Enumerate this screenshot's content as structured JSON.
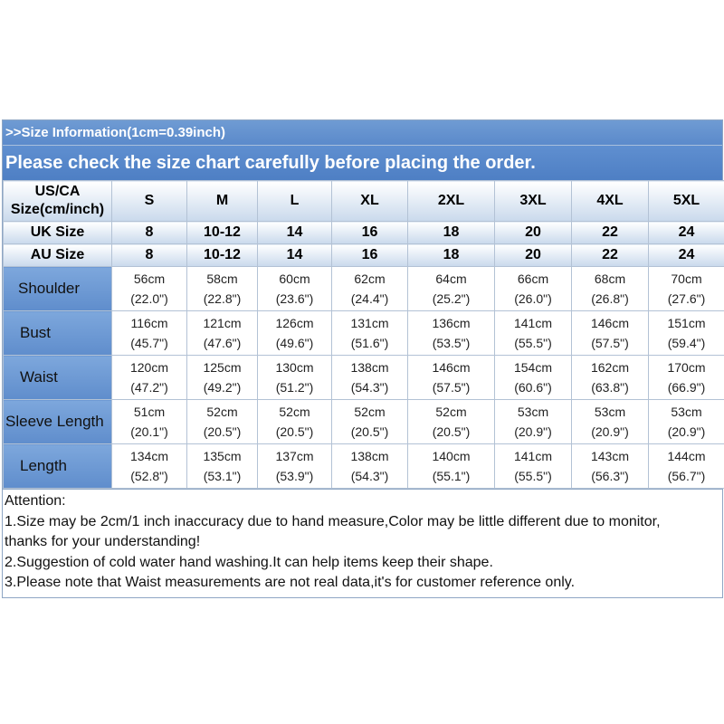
{
  "header": {
    "info": ">>Size Information(1cm=0.39inch)",
    "warning": "Please check the size chart carefully before placing the order."
  },
  "size_rows": [
    {
      "label_lines": [
        "US/CA",
        "Size(cm/inch)"
      ],
      "values": [
        "S",
        "M",
        "L",
        "XL",
        "2XL",
        "3XL",
        "4XL",
        "5XL"
      ]
    },
    {
      "label_lines": [
        "UK Size"
      ],
      "values": [
        "8",
        "10-12",
        "14",
        "16",
        "18",
        "20",
        "22",
        "24"
      ]
    },
    {
      "label_lines": [
        "AU Size"
      ],
      "values": [
        "8",
        "10-12",
        "14",
        "16",
        "18",
        "20",
        "22",
        "24"
      ]
    }
  ],
  "measurements": [
    {
      "label": "Shoulder",
      "cm": [
        "56cm",
        "58cm",
        "60cm",
        "62cm",
        "64cm",
        "66cm",
        "68cm",
        "70cm"
      ],
      "inch": [
        "(22.0\")",
        "(22.8\")",
        "(23.6\")",
        "(24.4\")",
        "(25.2\")",
        "(26.0\")",
        "(26.8\")",
        "(27.6\")"
      ]
    },
    {
      "label": "Bust",
      "cm": [
        "116cm",
        "121cm",
        "126cm",
        "131cm",
        "136cm",
        "141cm",
        "146cm",
        "151cm"
      ],
      "inch": [
        "(45.7\")",
        "(47.6\")",
        "(49.6\")",
        "(51.6\")",
        "(53.5\")",
        "(55.5\")",
        "(57.5\")",
        "(59.4\")"
      ]
    },
    {
      "label": "Waist",
      "cm": [
        "120cm",
        "125cm",
        "130cm",
        "138cm",
        "146cm",
        "154cm",
        "162cm",
        "170cm"
      ],
      "inch": [
        "(47.2\")",
        "(49.2\")",
        "(51.2\")",
        "(54.3\")",
        "(57.5\")",
        "(60.6\")",
        "(63.8\")",
        "(66.9\")"
      ]
    },
    {
      "label": "Sleeve Length",
      "cm": [
        "51cm",
        "52cm",
        "52cm",
        "52cm",
        "52cm",
        "53cm",
        "53cm",
        "53cm"
      ],
      "inch": [
        "(20.1\")",
        "(20.5\")",
        "(20.5\")",
        "(20.5\")",
        "(20.5\")",
        "(20.9\")",
        "(20.9\")",
        "(20.9\")"
      ]
    },
    {
      "label": "Length",
      "cm": [
        "134cm",
        "135cm",
        "137cm",
        "138cm",
        "140cm",
        "141cm",
        "143cm",
        "144cm"
      ],
      "inch": [
        "(52.8\")",
        "(53.1\")",
        "(53.9\")",
        "(54.3\")",
        "(55.1\")",
        "(55.5\")",
        "(56.3\")",
        "(56.7\")"
      ]
    }
  ],
  "notes": [
    "Attention:",
    "1.Size may be 2cm/1 inch inaccuracy due to hand measure,Color may be little different due to monitor,",
    "thanks for your understanding!",
    "2.Suggestion of cold water hand washing.It can help items keep their shape.",
    "3.Please note that Waist measurements are not real data,it's for customer reference only."
  ],
  "colors": {
    "header_blue": "#5b8acb",
    "label_blue": "#6f9bd6",
    "size_row_gradient_bottom": "#c9d9ec",
    "grid_line": "#b3c2d5"
  }
}
